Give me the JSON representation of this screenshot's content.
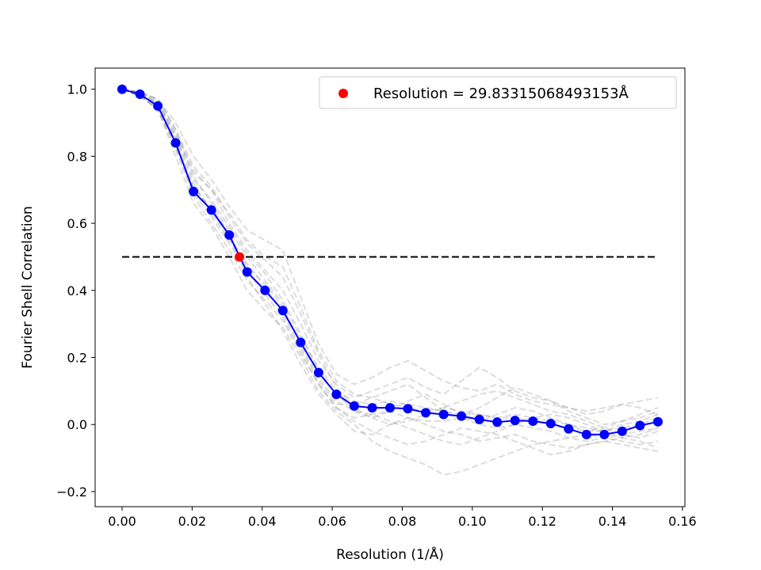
{
  "chart_data": {
    "type": "line",
    "xlabel": "Resolution (1/Å)",
    "ylabel": "Fourier Shell Correlation",
    "xlim": [
      -0.0077,
      0.1607
    ],
    "ylim": [
      -0.245,
      1.063
    ],
    "xticks": [
      {
        "value": 0.0,
        "label": "0.00"
      },
      {
        "value": 0.02,
        "label": "0.02"
      },
      {
        "value": 0.04,
        "label": "0.04"
      },
      {
        "value": 0.06,
        "label": "0.06"
      },
      {
        "value": 0.08,
        "label": "0.08"
      },
      {
        "value": 0.1,
        "label": "0.10"
      },
      {
        "value": 0.12,
        "label": "0.12"
      },
      {
        "value": 0.14,
        "label": "0.14"
      },
      {
        "value": 0.16,
        "label": "0.16"
      }
    ],
    "yticks": [
      {
        "value": -0.2,
        "label": "−0.2"
      },
      {
        "value": 0.0,
        "label": "0.0"
      },
      {
        "value": 0.2,
        "label": "0.2"
      },
      {
        "value": 0.4,
        "label": "0.4"
      },
      {
        "value": 0.6,
        "label": "0.6"
      },
      {
        "value": 0.8,
        "label": "0.8"
      },
      {
        "value": 1.0,
        "label": "1.0"
      }
    ],
    "grid": false,
    "legend": {
      "placement": "top-right",
      "entries": [
        {
          "label": "Resolution = 29.83315068493153Å",
          "color": "#ff0000",
          "marker": "circle"
        }
      ]
    },
    "series": [
      {
        "role": "main",
        "color": "#0000ff",
        "x": [
          0.0,
          0.0051,
          0.0102,
          0.0153,
          0.0204,
          0.0255,
          0.0306,
          0.0357,
          0.0408,
          0.0459,
          0.051,
          0.0561,
          0.0612,
          0.0663,
          0.0714,
          0.0765,
          0.0816,
          0.0867,
          0.0918,
          0.0969,
          0.102,
          0.1071,
          0.1122,
          0.1173,
          0.1224,
          0.1275,
          0.1326,
          0.1377,
          0.1428,
          0.1479,
          0.153
        ],
        "y": [
          1.0,
          0.985,
          0.95,
          0.84,
          0.695,
          0.64,
          0.565,
          0.455,
          0.4,
          0.34,
          0.245,
          0.155,
          0.09,
          0.055,
          0.05,
          0.05,
          0.047,
          0.035,
          0.03,
          0.025,
          0.015,
          0.007,
          0.012,
          0.01,
          0.003,
          -0.013,
          -0.03,
          -0.03,
          -0.02,
          -0.003,
          0.008
        ]
      },
      {
        "role": "threshold",
        "color": "#000000",
        "style": "dashed",
        "x": [
          0.0,
          0.153
        ],
        "y": [
          0.5,
          0.5
        ]
      },
      {
        "role": "resolution-point",
        "color": "#ff0000",
        "x": [
          0.03352
        ],
        "y": [
          0.5
        ]
      },
      {
        "role": "bootstrap",
        "color": "#808080",
        "style": "dashed",
        "curves": [
          [
            1.0,
            0.99,
            0.97,
            0.88,
            0.74,
            0.66,
            0.58,
            0.5,
            0.43,
            0.36,
            0.26,
            0.17,
            0.1,
            0.07,
            0.06,
            0.07,
            0.06,
            0.05,
            0.04,
            0.03,
            0.03,
            0.02,
            0.02,
            0.01,
            0.0,
            -0.01,
            -0.02,
            -0.02,
            -0.01,
            0.0,
            0.02
          ],
          [
            1.0,
            0.98,
            0.94,
            0.82,
            0.68,
            0.6,
            0.52,
            0.43,
            0.37,
            0.31,
            0.21,
            0.12,
            0.05,
            0.02,
            0.03,
            0.04,
            0.02,
            0.01,
            0.01,
            0.02,
            0.0,
            -0.01,
            0.0,
            -0.01,
            -0.02,
            -0.04,
            -0.05,
            -0.04,
            -0.03,
            -0.02,
            -0.01
          ],
          [
            1.0,
            0.99,
            0.96,
            0.87,
            0.76,
            0.7,
            0.63,
            0.55,
            0.5,
            0.47,
            0.35,
            0.22,
            0.13,
            0.09,
            0.08,
            0.06,
            0.05,
            0.04,
            0.05,
            0.04,
            0.03,
            0.02,
            0.03,
            0.02,
            0.01,
            0.0,
            -0.01,
            -0.02,
            0.0,
            0.01,
            0.03
          ],
          [
            1.0,
            0.98,
            0.95,
            0.83,
            0.71,
            0.64,
            0.56,
            0.44,
            0.36,
            0.28,
            0.18,
            0.09,
            0.03,
            -0.02,
            -0.03,
            0.0,
            0.02,
            0.0,
            -0.02,
            -0.03,
            -0.05,
            -0.04,
            -0.03,
            -0.05,
            -0.06,
            -0.07,
            -0.06,
            -0.05,
            -0.06,
            -0.07,
            -0.08
          ],
          [
            1.0,
            0.99,
            0.97,
            0.9,
            0.8,
            0.73,
            0.65,
            0.58,
            0.55,
            0.52,
            0.38,
            0.24,
            0.15,
            0.12,
            0.14,
            0.17,
            0.19,
            0.16,
            0.13,
            0.11,
            0.1,
            0.12,
            0.09,
            0.07,
            0.06,
            0.05,
            0.04,
            0.05,
            0.06,
            0.07,
            0.08
          ],
          [
            1.0,
            0.98,
            0.94,
            0.8,
            0.66,
            0.59,
            0.5,
            0.4,
            0.34,
            0.29,
            0.2,
            0.1,
            0.04,
            0.0,
            -0.05,
            -0.08,
            -0.1,
            -0.12,
            -0.15,
            -0.14,
            -0.12,
            -0.1,
            -0.08,
            -0.06,
            -0.05,
            -0.04,
            -0.03,
            -0.04,
            -0.05,
            -0.06,
            -0.05
          ],
          [
            1.0,
            0.99,
            0.96,
            0.86,
            0.75,
            0.7,
            0.6,
            0.52,
            0.46,
            0.4,
            0.3,
            0.19,
            0.12,
            0.08,
            0.1,
            0.12,
            0.14,
            0.11,
            0.09,
            0.13,
            0.17,
            0.14,
            0.1,
            0.08,
            0.07,
            0.04,
            0.02,
            0.0,
            0.01,
            0.02,
            0.04
          ],
          [
            1.0,
            0.98,
            0.95,
            0.84,
            0.7,
            0.65,
            0.57,
            0.47,
            0.42,
            0.35,
            0.24,
            0.14,
            0.07,
            0.04,
            0.02,
            0.0,
            0.01,
            0.03,
            0.05,
            0.07,
            0.09,
            0.1,
            0.08,
            0.06,
            0.04,
            0.03,
            0.01,
            -0.01,
            -0.03,
            -0.04,
            -0.02
          ],
          [
            1.0,
            0.99,
            0.95,
            0.85,
            0.72,
            0.63,
            0.55,
            0.48,
            0.41,
            0.33,
            0.23,
            0.13,
            0.06,
            0.06,
            0.08,
            0.1,
            0.12,
            0.08,
            0.04,
            0.02,
            0.01,
            0.03,
            0.05,
            0.04,
            0.02,
            0.0,
            -0.02,
            -0.01,
            0.01,
            0.03,
            0.05
          ],
          [
            1.0,
            0.98,
            0.96,
            0.86,
            0.73,
            0.67,
            0.59,
            0.51,
            0.45,
            0.37,
            0.27,
            0.16,
            0.09,
            0.04,
            0.03,
            0.01,
            -0.01,
            -0.03,
            -0.05,
            -0.06,
            -0.04,
            -0.02,
            0.0,
            0.02,
            0.03,
            0.02,
            0.0,
            -0.02,
            -0.04,
            -0.03,
            -0.01
          ],
          [
            1.0,
            0.99,
            0.97,
            0.88,
            0.77,
            0.71,
            0.62,
            0.54,
            0.49,
            0.44,
            0.33,
            0.21,
            0.11,
            0.05,
            0.02,
            0.04,
            0.07,
            0.09,
            0.06,
            0.03,
            0.05,
            0.08,
            0.11,
            0.09,
            0.07,
            0.05,
            0.03,
            0.04,
            0.06,
            0.05,
            0.03
          ],
          [
            1.0,
            0.98,
            0.94,
            0.83,
            0.69,
            0.62,
            0.54,
            0.46,
            0.39,
            0.32,
            0.22,
            0.12,
            0.05,
            0.01,
            -0.02,
            -0.04,
            -0.06,
            -0.05,
            -0.03,
            -0.01,
            -0.02,
            -0.03,
            -0.05,
            -0.07,
            -0.09,
            -0.08,
            -0.06,
            -0.05,
            -0.04,
            -0.05,
            -0.07
          ]
        ]
      }
    ]
  }
}
